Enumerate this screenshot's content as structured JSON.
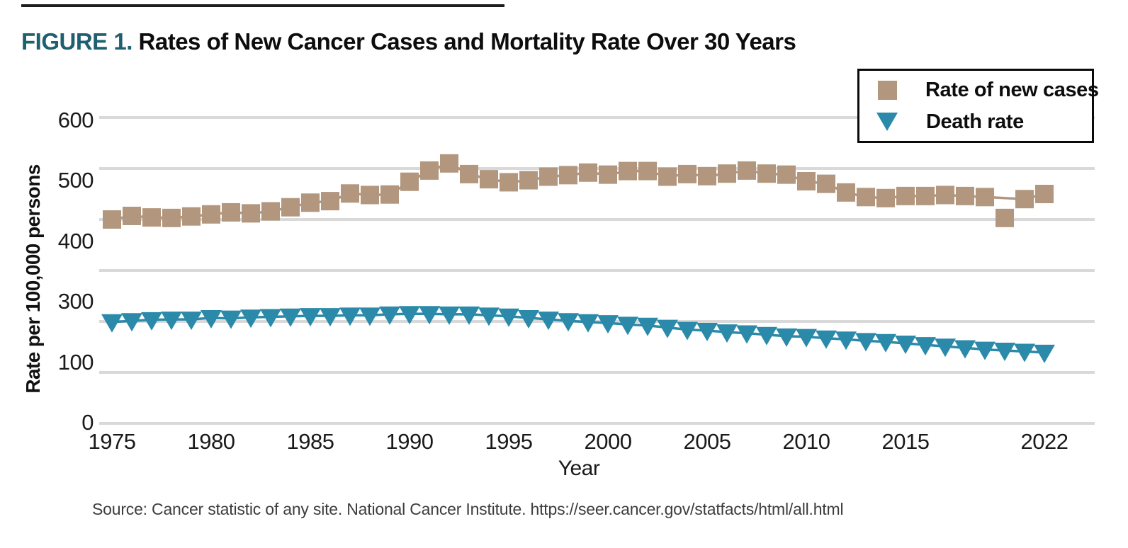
{
  "page": {
    "title_prefix": "FIGURE 1.",
    "title_rest": " Rates of New Cancer Cases and Mortality Rate Over 30 Years",
    "source_text": "Source: Cancer statistic of any site. National Cancer Institute. https://seer.cancer.gov/statfacts/html/all.html"
  },
  "legend": {
    "position": "top-right",
    "items": [
      {
        "label": "Rate of new cases",
        "marker": "square",
        "color": "#b2977e"
      },
      {
        "label": "Death rate",
        "marker": "triangle-down",
        "color": "#2b8aa9"
      }
    ]
  },
  "colors": {
    "tan": "#b2977e",
    "teal": "#2b8aa9",
    "figure_label_teal": "#1e5f70",
    "gridline": "#d9d9d9",
    "text": "#1a1a1a",
    "source_text": "#3d3d3d",
    "legend_border": "#0a0a0a"
  },
  "chart_data": {
    "type": "line",
    "title": "Rates of New Cancer Cases and Mortality Rate Over 30 Years",
    "xlabel": "Year",
    "ylabel": "Rate per 100,000 persons",
    "grid": true,
    "legend_position": "top-right",
    "x_axis": {
      "range": [
        1975,
        2022
      ],
      "tick_labels": [
        "1975",
        "1980",
        "1985",
        "1990",
        "1995",
        "2000",
        "2005",
        "2010",
        "2015",
        "2022"
      ]
    },
    "y_axis": {
      "range": [
        0,
        600
      ],
      "tick_labels": [
        "600",
        "500",
        "400",
        "300",
        "100",
        "0"
      ],
      "note": "tick labels are evenly spaced but skip 200; gridlines are at even 100 intervals",
      "gridline_values": [
        600,
        500,
        400,
        300,
        200,
        100,
        0
      ]
    },
    "x": [
      1975,
      1976,
      1977,
      1978,
      1979,
      1980,
      1981,
      1982,
      1983,
      1984,
      1985,
      1986,
      1987,
      1988,
      1989,
      1990,
      1991,
      1992,
      1993,
      1994,
      1995,
      1996,
      1997,
      1998,
      1999,
      2000,
      2001,
      2002,
      2003,
      2004,
      2005,
      2006,
      2007,
      2008,
      2009,
      2010,
      2011,
      2012,
      2013,
      2014,
      2015,
      2016,
      2017,
      2018,
      2019,
      2020,
      2021,
      2022
    ],
    "series": [
      {
        "name": "Rate of new cases",
        "marker": "square",
        "color": "#b2977e",
        "line_skips_years": [
          2020
        ],
        "values": [
          400,
          407,
          404,
          403,
          406,
          410,
          414,
          412,
          416,
          424,
          433,
          436,
          451,
          448,
          449,
          474,
          496,
          510,
          489,
          479,
          473,
          477,
          484,
          487,
          492,
          488,
          495,
          495,
          484,
          489,
          485,
          490,
          496,
          490,
          488,
          475,
          470,
          453,
          444,
          442,
          446,
          446,
          448,
          446,
          444,
          403,
          440,
          450
        ]
      },
      {
        "name": "Death rate",
        "marker": "triangle-down",
        "color": "#2b8aa9",
        "line_skips_years": [],
        "values": [
          199,
          201,
          203,
          204,
          204,
          207,
          206,
          208,
          209,
          210,
          211,
          211,
          212,
          212,
          214,
          215,
          215,
          214,
          214,
          212,
          210,
          207,
          204,
          201,
          199,
          197,
          194,
          192,
          188,
          184,
          182,
          179,
          177,
          174,
          171,
          170,
          167,
          165,
          162,
          160,
          157,
          154,
          151,
          148,
          145,
          143,
          141,
          139
        ]
      }
    ]
  }
}
